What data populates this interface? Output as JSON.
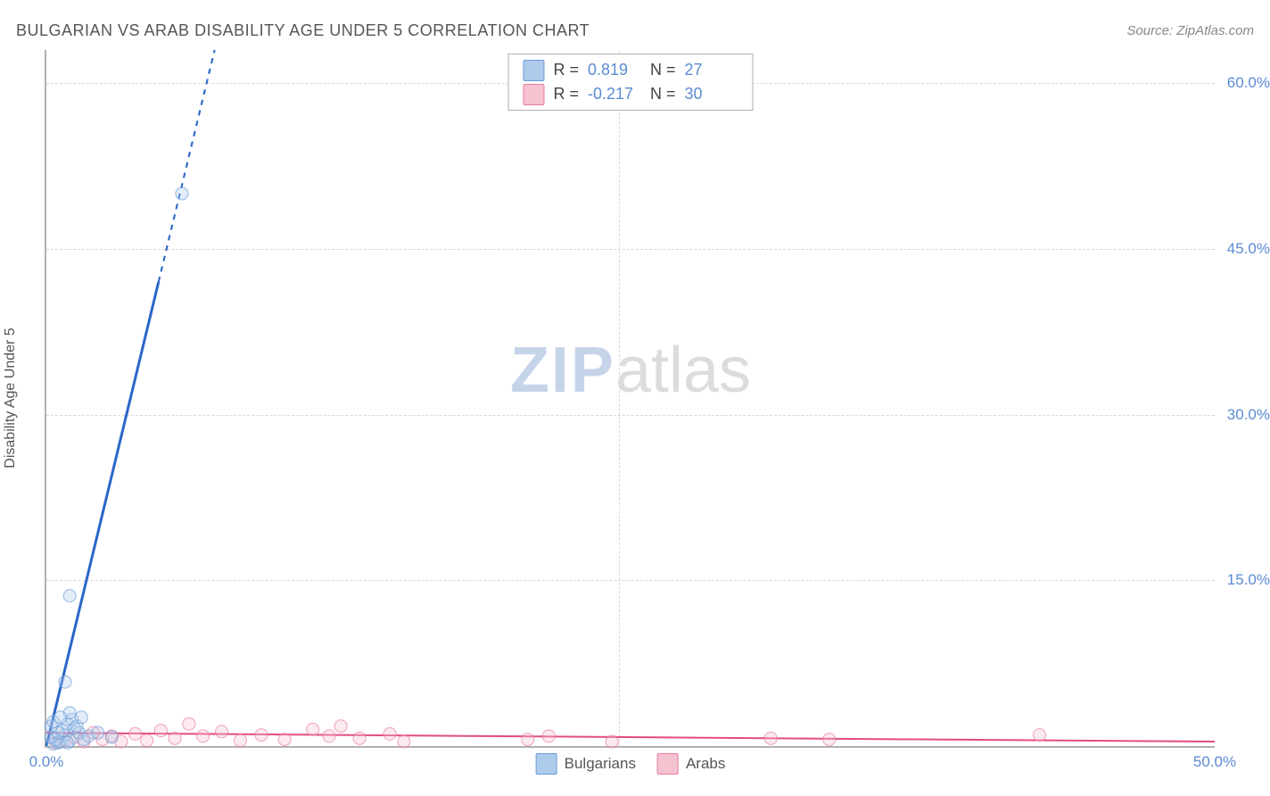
{
  "header": {
    "title": "BULGARIAN VS ARAB DISABILITY AGE UNDER 5 CORRELATION CHART",
    "source": "Source: ZipAtlas.com"
  },
  "chart": {
    "type": "scatter",
    "yaxis_label": "Disability Age Under 5",
    "xlim": [
      0,
      50
    ],
    "ylim": [
      0,
      63
    ],
    "xticks": [
      {
        "v": 0,
        "label": "0.0%"
      },
      {
        "v": 50,
        "label": "50.0%"
      }
    ],
    "yticks": [
      {
        "v": 15,
        "label": "15.0%"
      },
      {
        "v": 30,
        "label": "30.0%"
      },
      {
        "v": 45,
        "label": "45.0%"
      },
      {
        "v": 60,
        "label": "60.0%"
      }
    ],
    "grid_color": "#d9d9d9",
    "axis_color": "#b0b0b0",
    "background_color": "#ffffff",
    "tick_label_color": "#5b8bd4",
    "watermark": {
      "zip": "ZIP",
      "atlas": "atlas"
    }
  },
  "series": {
    "bulgarians": {
      "label": "Bulgarians",
      "color_fill": "#aecbeb",
      "color_stroke": "#6a9bd8",
      "marker_radius": 7,
      "trend_line": {
        "x1": 0,
        "y1": 0,
        "x2": 7.2,
        "y2": 63,
        "color": "#2a66c8",
        "width": 3,
        "solid_until_y": 42
      },
      "points": [
        {
          "x": 0.3,
          "y": 0.2
        },
        {
          "x": 0.5,
          "y": 0.3
        },
        {
          "x": 0.4,
          "y": 0.6
        },
        {
          "x": 0.6,
          "y": 0.4
        },
        {
          "x": 0.8,
          "y": 1.0
        },
        {
          "x": 1.0,
          "y": 0.5
        },
        {
          "x": 1.2,
          "y": 1.6
        },
        {
          "x": 0.2,
          "y": 0.8
        },
        {
          "x": 0.9,
          "y": 2.0
        },
        {
          "x": 1.4,
          "y": 1.2
        },
        {
          "x": 1.1,
          "y": 2.4
        },
        {
          "x": 0.7,
          "y": 1.4
        },
        {
          "x": 1.6,
          "y": 0.6
        },
        {
          "x": 1.3,
          "y": 1.8
        },
        {
          "x": 0.5,
          "y": 1.2
        },
        {
          "x": 0.2,
          "y": 1.8
        },
        {
          "x": 1.8,
          "y": 0.9
        },
        {
          "x": 1.0,
          "y": 3.0
        },
        {
          "x": 2.2,
          "y": 1.2
        },
        {
          "x": 0.9,
          "y": 0.3
        },
        {
          "x": 1.5,
          "y": 2.6
        },
        {
          "x": 0.8,
          "y": 5.8
        },
        {
          "x": 0.3,
          "y": 2.2
        },
        {
          "x": 0.6,
          "y": 2.6
        },
        {
          "x": 1.0,
          "y": 13.6
        },
        {
          "x": 5.8,
          "y": 50.0
        },
        {
          "x": 2.8,
          "y": 0.8
        }
      ]
    },
    "arabs": {
      "label": "Arabs",
      "color_fill": "#f4c3cf",
      "color_stroke": "#e87ca0",
      "marker_radius": 7,
      "trend_line": {
        "x1": 0,
        "y1": 1.2,
        "x2": 50,
        "y2": 0.4,
        "color": "#e24b86",
        "width": 2
      },
      "points": [
        {
          "x": 0.4,
          "y": 0.3
        },
        {
          "x": 0.8,
          "y": 0.5
        },
        {
          "x": 1.2,
          "y": 0.8
        },
        {
          "x": 1.6,
          "y": 0.4
        },
        {
          "x": 2.0,
          "y": 1.2
        },
        {
          "x": 2.4,
          "y": 0.6
        },
        {
          "x": 2.8,
          "y": 0.9
        },
        {
          "x": 3.2,
          "y": 0.4
        },
        {
          "x": 3.8,
          "y": 1.1
        },
        {
          "x": 4.3,
          "y": 0.5
        },
        {
          "x": 4.9,
          "y": 1.4
        },
        {
          "x": 5.5,
          "y": 0.7
        },
        {
          "x": 6.1,
          "y": 2.0
        },
        {
          "x": 6.7,
          "y": 0.9
        },
        {
          "x": 7.5,
          "y": 1.3
        },
        {
          "x": 8.3,
          "y": 0.5
        },
        {
          "x": 9.2,
          "y": 1.0
        },
        {
          "x": 10.2,
          "y": 0.6
        },
        {
          "x": 11.4,
          "y": 1.5
        },
        {
          "x": 12.1,
          "y": 0.9
        },
        {
          "x": 12.6,
          "y": 1.8
        },
        {
          "x": 13.4,
          "y": 0.7
        },
        {
          "x": 14.7,
          "y": 1.1
        },
        {
          "x": 15.3,
          "y": 0.4
        },
        {
          "x": 20.6,
          "y": 0.6
        },
        {
          "x": 21.5,
          "y": 0.9
        },
        {
          "x": 24.2,
          "y": 0.4
        },
        {
          "x": 31.0,
          "y": 0.7
        },
        {
          "x": 33.5,
          "y": 0.6
        },
        {
          "x": 42.5,
          "y": 1.0
        }
      ]
    }
  },
  "stats_legend": {
    "r_label": "R  =",
    "n_label": "N  =",
    "rows": [
      {
        "swatch_fill": "#aecbeb",
        "swatch_stroke": "#6a9bd8",
        "r": "0.819",
        "n": "27"
      },
      {
        "swatch_fill": "#f4c3cf",
        "swatch_stroke": "#e87ca0",
        "r": "-0.217",
        "n": "30"
      }
    ]
  },
  "bottom_legend": [
    {
      "swatch_fill": "#aecbeb",
      "swatch_stroke": "#6a9bd8",
      "label": "Bulgarians"
    },
    {
      "swatch_fill": "#f4c3cf",
      "swatch_stroke": "#e87ca0",
      "label": "Arabs"
    }
  ]
}
